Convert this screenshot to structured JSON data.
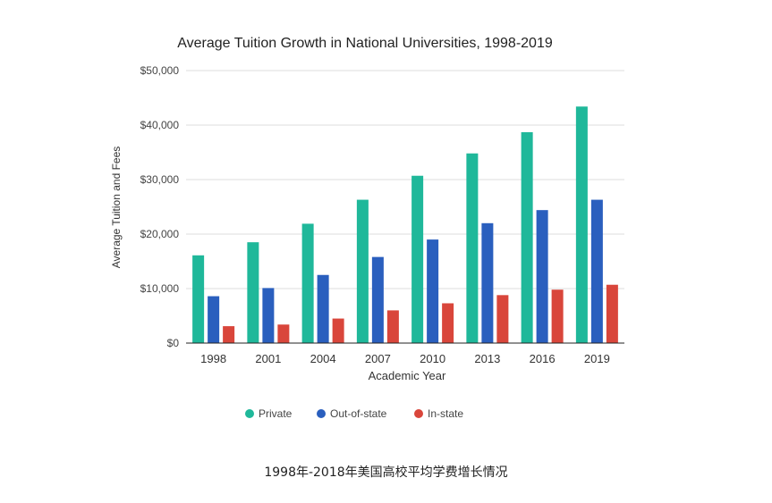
{
  "chart_data": {
    "type": "bar",
    "title": "Average Tuition Growth in National Universities, 1998-2019",
    "xlabel": "Academic Year",
    "ylabel": "Average Tuition and Fees",
    "categories": [
      "1998",
      "2001",
      "2004",
      "2007",
      "2010",
      "2013",
      "2016",
      "2019"
    ],
    "ylim": [
      0,
      50000
    ],
    "yticks": [
      0,
      10000,
      20000,
      30000,
      40000,
      50000
    ],
    "ytick_labels": [
      "$0",
      "$10,000",
      "$20,000",
      "$30,000",
      "$40,000",
      "$50,000"
    ],
    "grid": true,
    "legend_position": "bottom",
    "series": [
      {
        "name": "Private",
        "color": "#1fb89a",
        "values": [
          16100,
          18500,
          21900,
          26300,
          30700,
          34800,
          38700,
          43400
        ]
      },
      {
        "name": "Out-of-state",
        "color": "#2a5fbe",
        "values": [
          8600,
          10100,
          12500,
          15800,
          19000,
          22000,
          24400,
          26300
        ]
      },
      {
        "name": "In-state",
        "color": "#d9463b",
        "values": [
          3100,
          3400,
          4500,
          6000,
          7300,
          8800,
          9800,
          10700
        ]
      }
    ]
  },
  "caption": "1998年-2018年美国高校平均学费增长情况"
}
